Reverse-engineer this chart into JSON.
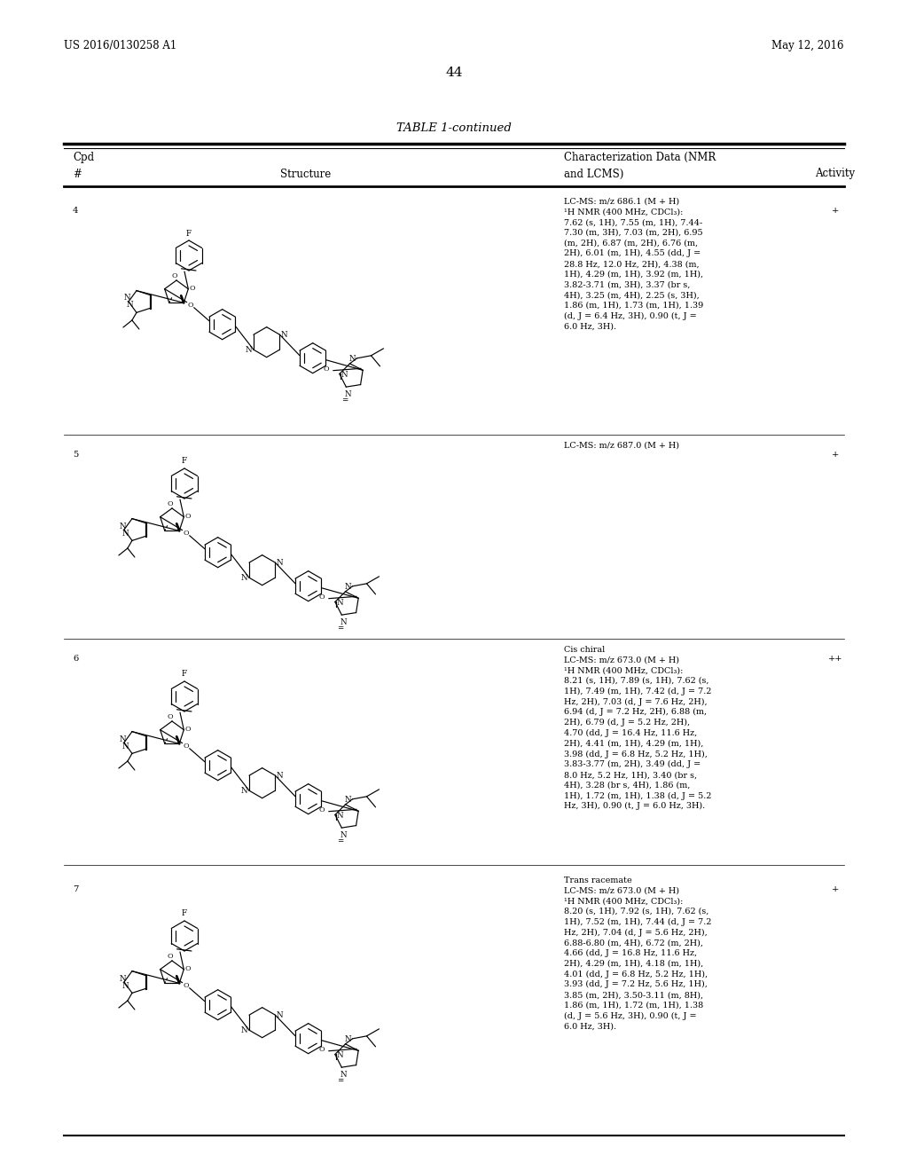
{
  "background_color": "#ffffff",
  "page_header_left": "US 2016/0130258 A1",
  "page_header_right": "May 12, 2016",
  "page_number": "44",
  "table_title": "TABLE 1-continued",
  "font_family": "DejaVu Serif",
  "header_fontsize": 8.5,
  "body_fontsize": 7.2,
  "title_fontsize": 9.5,
  "page_header_fontsize": 8.5,
  "rows": [
    {
      "cpd": "4",
      "nmr_text": "LC-MS: m/z 686.1 (M + H)\n¹H NMR (400 MHz, CDCl₃):\n7.62 (s, 1H), 7.55 (m, 1H), 7.44-\n7.30 (m, 3H), 7.03 (m, 2H), 6.95\n(m, 2H), 6.87 (m, 2H), 6.76 (m,\n2H), 6.01 (m, 1H), 4.55 (dd, J =\n28.8 Hz, 12.0 Hz, 2H), 4.38 (m,\n1H), 4.29 (m, 1H), 3.92 (m, 1H),\n3.82-3.71 (m, 3H), 3.37 (br s,\n4H), 3.25 (m, 4H), 2.25 (s, 3H),\n1.86 (m, 1H), 1.73 (m, 1H), 1.39\n(d, J = 6.4 Hz, 3H), 0.90 (t, J =\n6.0 Hz, 3H).",
      "activity": "+"
    },
    {
      "cpd": "5",
      "nmr_text": "LC-MS: m/z 687.0 (M + H)",
      "activity": "+"
    },
    {
      "cpd": "6",
      "nmr_text": "Cis chiral\nLC-MS: m/z 673.0 (M + H)\n¹H NMR (400 MHz, CDCl₃):\n8.21 (s, 1H), 7.89 (s, 1H), 7.62 (s,\n1H), 7.49 (m, 1H), 7.42 (d, J = 7.2\nHz, 2H), 7.03 (d, J = 7.6 Hz, 2H),\n6.94 (d, J = 7.2 Hz, 2H), 6.88 (m,\n2H), 6.79 (d, J = 5.2 Hz, 2H),\n4.70 (dd, J = 16.4 Hz, 11.6 Hz,\n2H), 4.41 (m, 1H), 4.29 (m, 1H),\n3.98 (dd, J = 6.8 Hz, 5.2 Hz, 1H),\n3.83-3.77 (m, 2H), 3.49 (dd, J =\n8.0 Hz, 5.2 Hz, 1H), 3.40 (br s,\n4H), 3.28 (br s, 4H), 1.86 (m,\n1H), 1.72 (m, 1H), 1.38 (d, J = 5.2\nHz, 3H), 0.90 (t, J = 6.0 Hz, 3H).",
      "activity": "++"
    },
    {
      "cpd": "7",
      "nmr_text": "Trans racemate\nLC-MS: m/z 673.0 (M + H)\n¹H NMR (400 MHz, CDCl₃):\n8.20 (s, 1H), 7.92 (s, 1H), 7.62 (s,\n1H), 7.52 (m, 1H), 7.44 (d, J = 7.2\nHz, 2H), 7.04 (d, J = 5.6 Hz, 2H),\n6.88-6.80 (m, 4H), 6.72 (m, 2H),\n4.66 (dd, J = 16.8 Hz, 11.6 Hz,\n2H), 4.29 (m, 1H), 4.18 (m, 1H),\n4.01 (dd, J = 6.8 Hz, 5.2 Hz, 1H),\n3.93 (dd, J = 7.2 Hz, 5.6 Hz, 1H),\n3.85 (m, 2H), 3.50-3.11 (m, 8H),\n1.86 (m, 1H), 1.72 (m, 1H), 1.38\n(d, J = 5.6 Hz, 3H), 0.90 (t, J =\n6.0 Hz, 3H).",
      "activity": "+"
    }
  ]
}
